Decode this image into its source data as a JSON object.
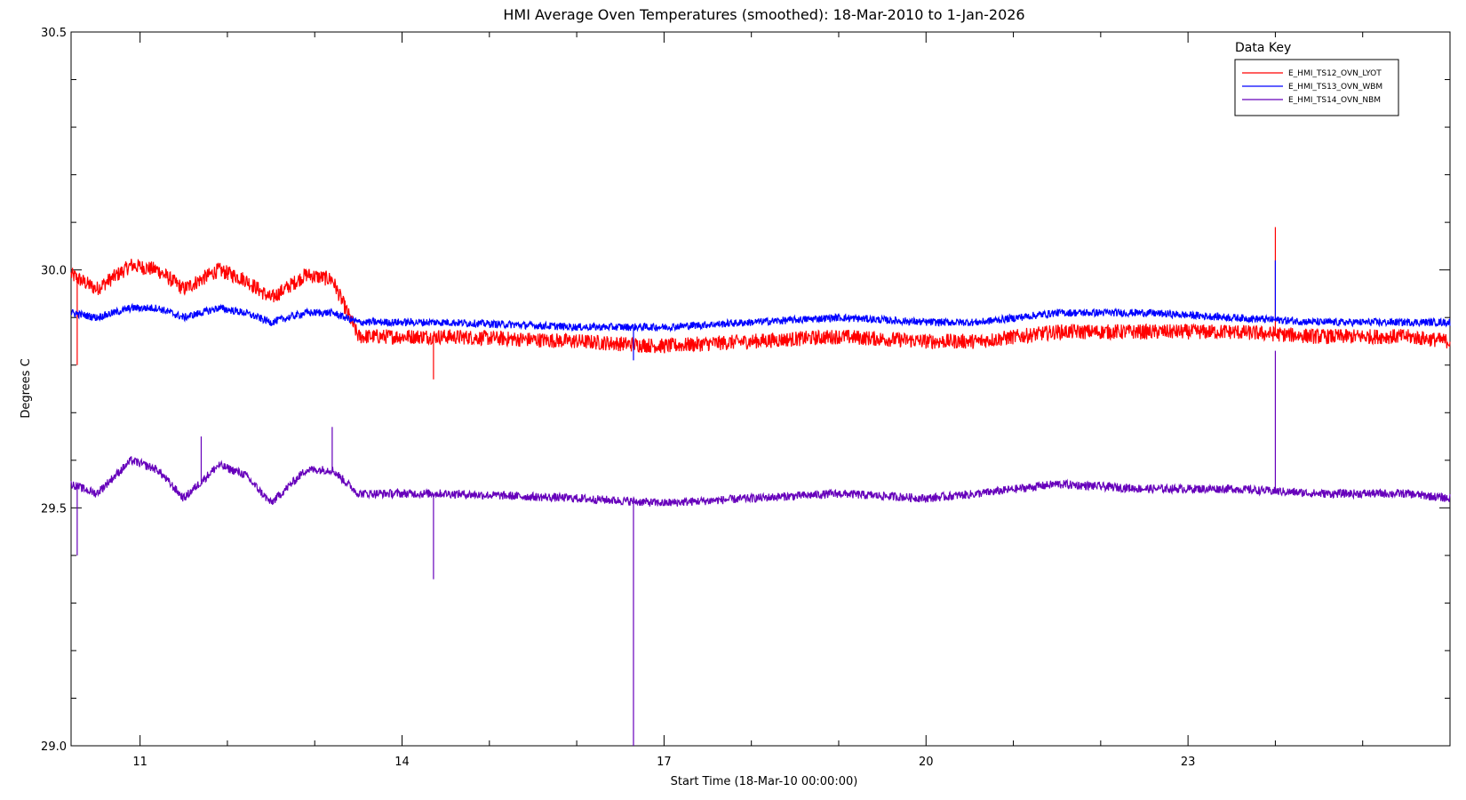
{
  "chart_data": {
    "type": "line",
    "title": "HMI Average Oven Temperatures (smoothed): 18-Mar-2010 to 1-Jan-2026",
    "xlabel": "Start Time (18-Mar-10 00:00:00)",
    "ylabel": "Degrees C",
    "xlim": [
      2010.21,
      2026.0
    ],
    "ylim": [
      29.0,
      30.5
    ],
    "x_ticks": [
      2011,
      2014,
      2017,
      2020,
      2023
    ],
    "x_tick_labels": [
      "11",
      "14",
      "17",
      "20",
      "23"
    ],
    "x_minor_ticks": [
      2012,
      2013,
      2015,
      2016,
      2018,
      2019,
      2021,
      2022,
      2024,
      2025
    ],
    "y_ticks": [
      29.0,
      29.5,
      30.0,
      30.5
    ],
    "y_tick_labels": [
      "29.0",
      "29.5",
      "30.0",
      "30.5"
    ],
    "y_minor_ticks": [
      29.1,
      29.2,
      29.3,
      29.4,
      29.6,
      29.7,
      29.8,
      29.9,
      30.1,
      30.2,
      30.3,
      30.4
    ],
    "grid": false,
    "legend": {
      "title": "Data Key",
      "placement": "top-right"
    },
    "series": [
      {
        "name": "E_HMI_TS12_OVN_LYOT",
        "color": "#ff0000",
        "noise": 0.016,
        "x": [
          2010.21,
          2010.5,
          2010.9,
          2011.2,
          2011.5,
          2011.9,
          2012.2,
          2012.5,
          2012.9,
          2013.2,
          2013.5,
          2014.5,
          2016.0,
          2017.0,
          2018.0,
          2019.0,
          2020.0,
          2020.6,
          2021.5,
          2022.5,
          2023.5,
          2024.5,
          2025.5,
          2026.0
        ],
        "y": [
          29.99,
          29.96,
          30.01,
          30.0,
          29.96,
          30.0,
          29.98,
          29.94,
          29.99,
          29.98,
          29.86,
          29.86,
          29.85,
          29.84,
          29.85,
          29.86,
          29.85,
          29.85,
          29.87,
          29.87,
          29.87,
          29.86,
          29.86,
          29.85
        ],
        "spikes": [
          {
            "x": 2024.0,
            "y": 30.09
          },
          {
            "x": 2014.36,
            "y": 29.77
          },
          {
            "x": 2010.28,
            "y": 29.8
          }
        ]
      },
      {
        "name": "E_HMI_TS13_OVN_WBM",
        "color": "#0000ff",
        "noise": 0.008,
        "x": [
          2010.21,
          2010.5,
          2010.9,
          2011.2,
          2011.5,
          2011.9,
          2012.2,
          2012.5,
          2012.9,
          2013.2,
          2013.5,
          2014.5,
          2016.0,
          2017.0,
          2018.0,
          2019.0,
          2020.0,
          2020.6,
          2021.5,
          2022.5,
          2023.5,
          2024.5,
          2025.5,
          2026.0
        ],
        "y": [
          29.91,
          29.9,
          29.92,
          29.92,
          29.9,
          29.92,
          29.91,
          29.89,
          29.91,
          29.91,
          29.89,
          29.89,
          29.88,
          29.88,
          29.89,
          29.9,
          29.89,
          29.89,
          29.91,
          29.91,
          29.9,
          29.89,
          29.89,
          29.89
        ],
        "spikes": [
          {
            "x": 2016.65,
            "y": 29.81
          },
          {
            "x": 2024.0,
            "y": 30.02
          }
        ]
      },
      {
        "name": "E_HMI_TS14_OVN_NBM",
        "color": "#6600bb",
        "noise": 0.009,
        "x": [
          2010.21,
          2010.5,
          2010.9,
          2011.2,
          2011.5,
          2011.9,
          2012.2,
          2012.5,
          2012.9,
          2013.2,
          2013.5,
          2014.5,
          2016.0,
          2017.0,
          2018.0,
          2019.0,
          2020.0,
          2020.6,
          2021.5,
          2022.5,
          2023.5,
          2024.5,
          2025.5,
          2026.0
        ],
        "y": [
          29.55,
          29.53,
          29.6,
          29.58,
          29.52,
          29.59,
          29.57,
          29.51,
          29.58,
          29.58,
          29.53,
          29.53,
          29.52,
          29.51,
          29.52,
          29.53,
          29.52,
          29.53,
          29.55,
          29.54,
          29.54,
          29.53,
          29.53,
          29.52
        ],
        "spikes": [
          {
            "x": 2016.65,
            "y": 29.0
          },
          {
            "x": 2014.36,
            "y": 29.35
          },
          {
            "x": 2010.28,
            "y": 29.4
          },
          {
            "x": 2024.0,
            "y": 29.83
          },
          {
            "x": 2011.7,
            "y": 29.65
          },
          {
            "x": 2013.2,
            "y": 29.67
          }
        ]
      }
    ]
  }
}
